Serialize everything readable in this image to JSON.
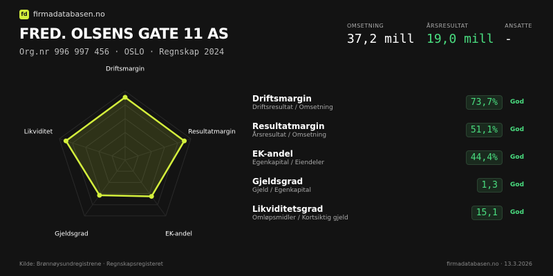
{
  "header": {
    "logo": "fd",
    "brand": "firmadatabasen.no",
    "title": "FRED. OLSENS GATE 11 AS",
    "subtitle": "Org.nr 996 997 456 · OSLO · Regnskap 2024"
  },
  "kpis": [
    {
      "label": "OMSETNING",
      "value": "37,2 mill"
    },
    {
      "label": "ÅRSRESULTAT",
      "value": "19,0 mill"
    },
    {
      "label": "ANSATTE",
      "value": "-"
    }
  ],
  "chart_data": {
    "type": "radar",
    "categories": [
      "Driftsmargin",
      "Resultatmargin",
      "EK-andel",
      "Gjeldsgrad",
      "Likviditet"
    ],
    "values": [
      91,
      90,
      65,
      63,
      90
    ],
    "rlim": [
      0,
      100
    ],
    "color": "#d4f03c",
    "grid": true
  },
  "ratios": [
    {
      "name": "Driftsmargin",
      "formula": "Driftsresultat / Omsetning",
      "value": "73,7%",
      "rating": "God"
    },
    {
      "name": "Resultatmargin",
      "formula": "Årsresultat / Omsetning",
      "value": "51,1%",
      "rating": "God"
    },
    {
      "name": "EK-andel",
      "formula": "Egenkapital / Eiendeler",
      "value": "44,4%",
      "rating": "God"
    },
    {
      "name": "Gjeldsgrad",
      "formula": "Gjeld / Egenkapital",
      "value": "1,3",
      "rating": "God"
    },
    {
      "name": "Likviditetsgrad",
      "formula": "Omløpsmidler / Kortsiktig gjeld",
      "value": "15,1",
      "rating": "God"
    }
  ],
  "footer": {
    "source": "Kilde: Brønnøysundregistrene · Regnskapsregisteret",
    "credit": "firmadatabasen.no · 13.3.2026"
  }
}
